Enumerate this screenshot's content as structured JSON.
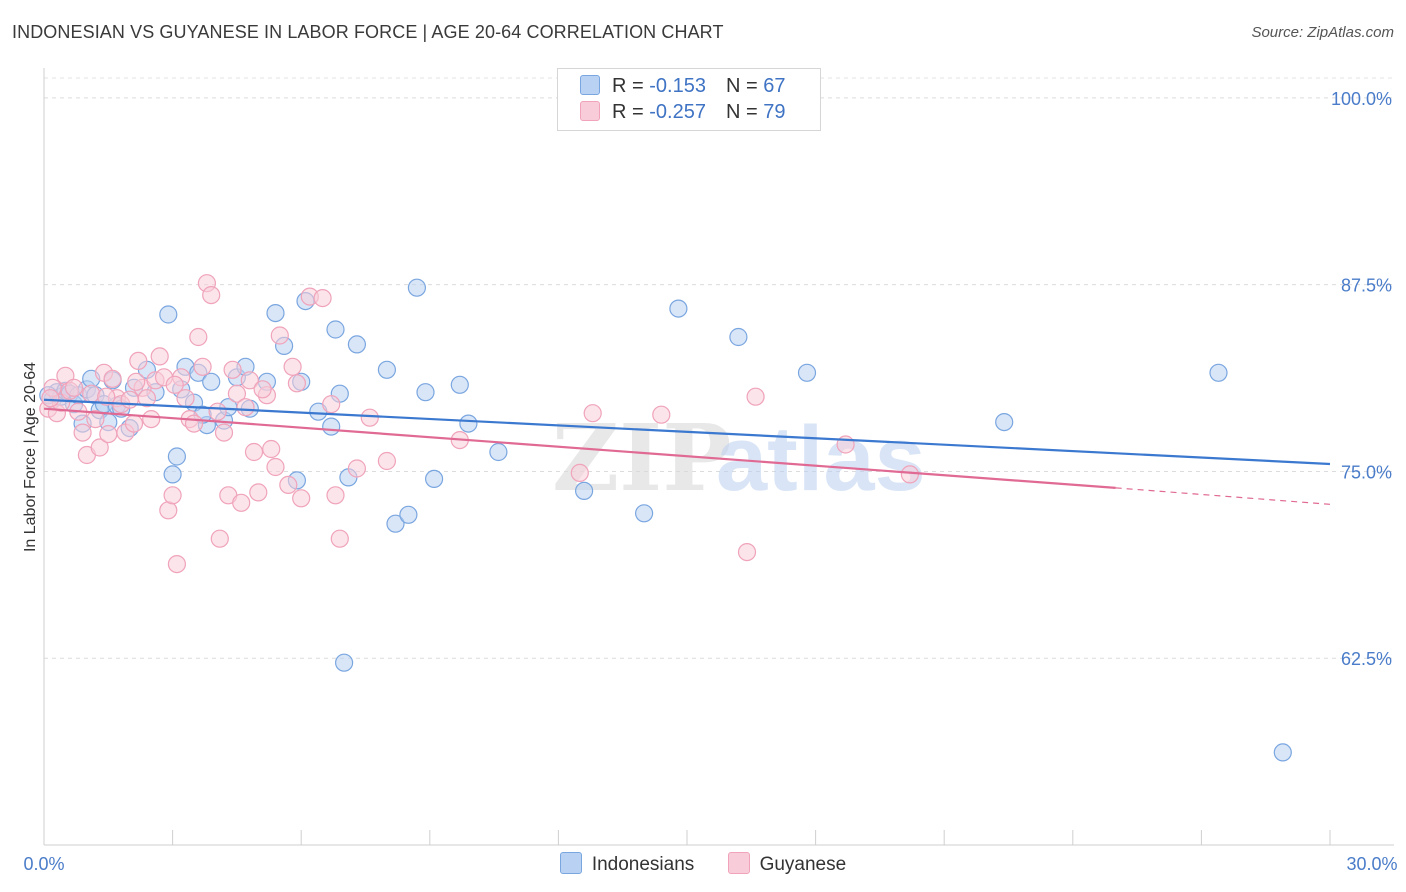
{
  "chart_data": {
    "type": "scatter",
    "title": "INDONESIAN VS GUYANESE IN LABOR FORCE | AGE 20-64 CORRELATION CHART",
    "source": "Source: ZipAtlas.com",
    "ylabel": "In Labor Force | Age 20-64",
    "xlim": [
      0,
      30
    ],
    "ylim": [
      50,
      102
    ],
    "x_tick_labels": [
      "0.0%",
      "30.0%"
    ],
    "y_ticks": [
      {
        "value": 100.0,
        "label": "100.0%"
      },
      {
        "value": 87.5,
        "label": "87.5%"
      },
      {
        "value": 75.0,
        "label": "75.0%"
      },
      {
        "value": 62.5,
        "label": "62.5%"
      }
    ],
    "watermark": {
      "zip": "ZIP",
      "atlas": "atlas"
    },
    "legend": {
      "r_label": "R = ",
      "n_label": "N = ",
      "entries": [
        {
          "name": "Indonesians",
          "r": "-0.153",
          "n": "67"
        },
        {
          "name": "Guyanese",
          "r": "-0.257",
          "n": "79"
        }
      ]
    },
    "series": [
      {
        "name": "Indonesians",
        "color": "#7aa6e0",
        "fill": "#b9d1f2",
        "line_color": "#3b78cf",
        "trend": {
          "x": [
            0,
            30
          ],
          "y": [
            79.8,
            75.5
          ]
        },
        "points": [
          [
            0.2,
            79.8
          ],
          [
            0.3,
            80.3
          ],
          [
            0.4,
            80.0
          ],
          [
            0.5,
            80.4
          ],
          [
            0.6,
            80.2
          ],
          [
            0.7,
            79.5
          ],
          [
            0.8,
            80.1
          ],
          [
            0.9,
            78.2
          ],
          [
            1.0,
            80.5
          ],
          [
            1.1,
            81.2
          ],
          [
            1.2,
            80.1
          ],
          [
            1.3,
            79.1
          ],
          [
            1.4,
            79.5
          ],
          [
            1.5,
            78.3
          ],
          [
            1.6,
            81.1
          ],
          [
            1.7,
            79.4
          ],
          [
            1.8,
            79.2
          ],
          [
            2.0,
            77.9
          ],
          [
            2.1,
            80.6
          ],
          [
            2.4,
            81.8
          ],
          [
            2.9,
            85.5
          ],
          [
            3.0,
            74.8
          ],
          [
            3.1,
            76.0
          ],
          [
            3.2,
            80.5
          ],
          [
            3.3,
            82.0
          ],
          [
            3.5,
            79.6
          ],
          [
            3.6,
            81.6
          ],
          [
            3.8,
            78.1
          ],
          [
            3.9,
            81.0
          ],
          [
            4.2,
            78.4
          ],
          [
            4.3,
            79.3
          ],
          [
            4.5,
            81.3
          ],
          [
            4.7,
            82.0
          ],
          [
            4.8,
            79.2
          ],
          [
            5.2,
            81.0
          ],
          [
            5.4,
            85.6
          ],
          [
            5.6,
            83.4
          ],
          [
            5.9,
            74.4
          ],
          [
            6.0,
            81.0
          ],
          [
            6.1,
            86.4
          ],
          [
            6.4,
            79.0
          ],
          [
            6.7,
            78.0
          ],
          [
            6.8,
            84.5
          ],
          [
            6.9,
            80.2
          ],
          [
            7.0,
            62.2
          ],
          [
            7.1,
            74.6
          ],
          [
            7.3,
            83.5
          ],
          [
            8.0,
            81.8
          ],
          [
            8.2,
            71.5
          ],
          [
            8.5,
            72.1
          ],
          [
            8.7,
            87.3
          ],
          [
            8.9,
            80.3
          ],
          [
            9.1,
            74.5
          ],
          [
            9.7,
            80.8
          ],
          [
            9.9,
            78.2
          ],
          [
            10.6,
            76.3
          ],
          [
            12.6,
            73.7
          ],
          [
            14.0,
            72.2
          ],
          [
            14.8,
            85.9
          ],
          [
            16.2,
            84.0
          ],
          [
            17.8,
            81.6
          ],
          [
            22.4,
            78.3
          ],
          [
            27.4,
            81.6
          ],
          [
            28.9,
            56.2
          ],
          [
            0.1,
            80.1
          ],
          [
            2.6,
            80.3
          ],
          [
            3.7,
            78.8
          ]
        ]
      },
      {
        "name": "Guyanese",
        "color": "#f0a3ba",
        "fill": "#f8cdd9",
        "line_color": "#e06a93",
        "trend": {
          "x": [
            0,
            25
          ],
          "y": [
            79.2,
            73.9
          ]
        },
        "trend_dashed": {
          "x": [
            25,
            30
          ],
          "y": [
            73.9,
            72.8
          ]
        },
        "points": [
          [
            0.1,
            79.2
          ],
          [
            0.2,
            80.6
          ],
          [
            0.3,
            78.9
          ],
          [
            0.4,
            79.6
          ],
          [
            0.5,
            81.4
          ],
          [
            0.6,
            80.4
          ],
          [
            0.7,
            80.6
          ],
          [
            0.8,
            79.0
          ],
          [
            0.9,
            77.6
          ],
          [
            1.0,
            76.1
          ],
          [
            1.1,
            80.2
          ],
          [
            1.2,
            78.5
          ],
          [
            1.3,
            76.6
          ],
          [
            1.4,
            81.6
          ],
          [
            1.5,
            77.5
          ],
          [
            1.6,
            81.2
          ],
          [
            1.7,
            79.9
          ],
          [
            1.8,
            79.5
          ],
          [
            1.9,
            77.6
          ],
          [
            2.0,
            79.8
          ],
          [
            2.1,
            78.2
          ],
          [
            2.2,
            82.4
          ],
          [
            2.3,
            80.6
          ],
          [
            2.4,
            79.9
          ],
          [
            2.5,
            78.5
          ],
          [
            2.6,
            81.1
          ],
          [
            2.7,
            82.7
          ],
          [
            2.8,
            81.3
          ],
          [
            2.9,
            72.4
          ],
          [
            3.0,
            73.4
          ],
          [
            3.1,
            68.8
          ],
          [
            3.2,
            81.3
          ],
          [
            3.3,
            79.9
          ],
          [
            3.4,
            78.5
          ],
          [
            3.5,
            78.2
          ],
          [
            3.6,
            84.0
          ],
          [
            3.7,
            82.0
          ],
          [
            3.8,
            87.6
          ],
          [
            3.9,
            86.8
          ],
          [
            4.1,
            70.5
          ],
          [
            4.2,
            77.6
          ],
          [
            4.3,
            73.4
          ],
          [
            4.4,
            81.8
          ],
          [
            4.5,
            80.2
          ],
          [
            4.6,
            72.9
          ],
          [
            4.7,
            79.3
          ],
          [
            4.8,
            81.1
          ],
          [
            4.9,
            76.3
          ],
          [
            5.0,
            73.6
          ],
          [
            5.2,
            80.1
          ],
          [
            5.3,
            76.5
          ],
          [
            5.4,
            75.3
          ],
          [
            5.5,
            84.1
          ],
          [
            5.7,
            74.1
          ],
          [
            5.8,
            82.0
          ],
          [
            5.9,
            80.9
          ],
          [
            6.0,
            73.2
          ],
          [
            6.2,
            86.7
          ],
          [
            6.5,
            86.6
          ],
          [
            6.7,
            79.5
          ],
          [
            6.8,
            73.4
          ],
          [
            6.9,
            70.5
          ],
          [
            7.3,
            75.2
          ],
          [
            7.6,
            78.6
          ],
          [
            8.0,
            75.7
          ],
          [
            9.7,
            77.1
          ],
          [
            12.5,
            74.9
          ],
          [
            12.8,
            78.9
          ],
          [
            14.4,
            78.8
          ],
          [
            16.4,
            69.6
          ],
          [
            16.6,
            80.0
          ],
          [
            18.7,
            76.8
          ],
          [
            20.2,
            74.8
          ],
          [
            0.15,
            79.9
          ],
          [
            1.45,
            80.0
          ],
          [
            2.15,
            81.0
          ],
          [
            3.05,
            80.8
          ],
          [
            4.05,
            79.0
          ],
          [
            5.1,
            80.5
          ]
        ]
      }
    ]
  }
}
